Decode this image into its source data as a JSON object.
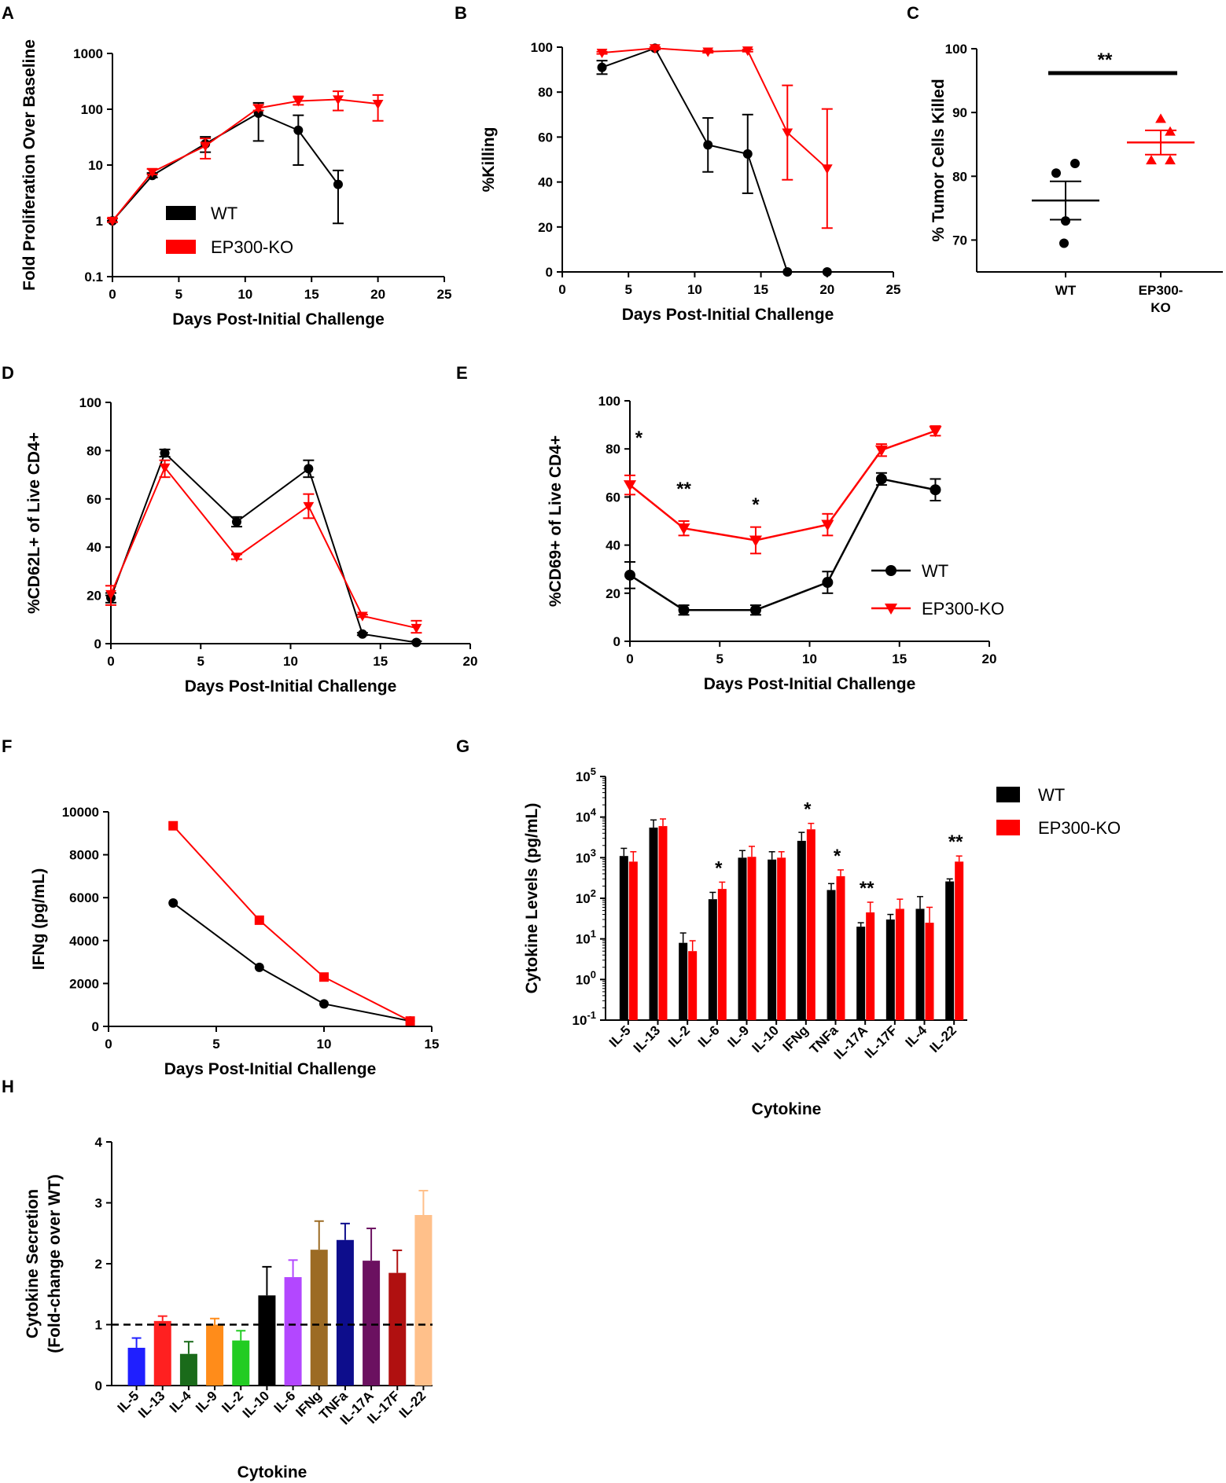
{
  "colors": {
    "wt": "#000000",
    "ko": "#ff0000"
  },
  "panel_letters": [
    "A",
    "B",
    "C",
    "D",
    "E",
    "F",
    "G",
    "H"
  ],
  "chart_data": [
    {
      "id": "A",
      "type": "line",
      "xscale": "linear",
      "yscale": "log",
      "title": "",
      "xlabel": "Days Post-Initial Challenge",
      "ylabel": "Fold Proliferation Over Baseline",
      "xlim": [
        0,
        25
      ],
      "ylim": [
        0.1,
        1000
      ],
      "xticks": [
        0,
        5,
        10,
        15,
        20,
        25
      ],
      "xtick_labels": [
        "0",
        "5",
        "10",
        "15",
        "20",
        "25"
      ],
      "yticks": [
        0.1,
        1,
        10,
        100,
        1000
      ],
      "ytick_labels": [
        "0.1",
        "1",
        "10",
        "100",
        "1000"
      ],
      "legend": {
        "position": "bottom-center",
        "style": "box",
        "entries": [
          "WT",
          "EP300-KO"
        ]
      },
      "series": [
        {
          "name": "WT",
          "color_key": "wt",
          "marker": "circle",
          "x": [
            0,
            3,
            7,
            11,
            14,
            17
          ],
          "y": [
            1,
            6.5,
            24,
            85,
            42,
            4.5
          ],
          "err_hi": [
            1.1,
            7.2,
            32,
            130,
            78,
            8
          ],
          "err_lo": [
            0.95,
            6,
            17,
            27,
            10,
            0.9
          ]
        },
        {
          "name": "EP300-KO",
          "color_key": "ko",
          "marker": "triangle-down",
          "x": [
            0,
            3,
            7,
            11,
            14,
            17,
            20
          ],
          "y": [
            1,
            7.5,
            22,
            105,
            140,
            150,
            125
          ],
          "err_hi": [
            1.1,
            8.5,
            30,
            120,
            170,
            210,
            180
          ],
          "err_lo": [
            0.95,
            6.8,
            13,
            95,
            120,
            95,
            62
          ]
        }
      ]
    },
    {
      "id": "B",
      "type": "line",
      "xscale": "linear",
      "yscale": "linear",
      "title": "",
      "xlabel": "Days Post-Initial Challenge",
      "ylabel": "%Killing",
      "xlim": [
        0,
        25
      ],
      "ylim": [
        0,
        100
      ],
      "xticks": [
        0,
        5,
        10,
        15,
        20,
        25
      ],
      "xtick_labels": [
        "0",
        "5",
        "10",
        "15",
        "20",
        "25"
      ],
      "yticks": [
        0,
        20,
        40,
        60,
        80,
        100
      ],
      "ytick_labels": [
        "0",
        "20",
        "40",
        "60",
        "80",
        "100"
      ],
      "legend": null,
      "series": [
        {
          "name": "WT",
          "color_key": "wt",
          "marker": "circle",
          "x": [
            3,
            7,
            11,
            14,
            17,
            20
          ],
          "y": [
            91,
            99.5,
            56.5,
            52.5,
            0,
            0
          ],
          "err_hi": [
            94,
            100,
            68.5,
            70,
            0,
            0
          ],
          "err_lo": [
            88,
            99,
            44.5,
            35,
            0,
            0
          ]
        },
        {
          "name": "EP300-KO",
          "color_key": "ko",
          "marker": "triangle-down",
          "x": [
            3,
            7,
            11,
            14,
            17,
            20
          ],
          "y": [
            97.5,
            99.5,
            98,
            98.5,
            62,
            46
          ],
          "err_hi": [
            98,
            100,
            98.5,
            99,
            83,
            72.5
          ],
          "err_lo": [
            97,
            99,
            97.5,
            98,
            41,
            19.5
          ]
        }
      ]
    },
    {
      "id": "C",
      "type": "scatter",
      "title": "",
      "xlabel": "",
      "ylabel": "% Tumor Cells Killed",
      "ylim": [
        65,
        100
      ],
      "yticks": [
        70,
        80,
        90,
        100
      ],
      "ytick_labels": [
        "70",
        "80",
        "90",
        "100"
      ],
      "categories": [
        "WT",
        "EP300-KO"
      ],
      "category_lines": [
        [
          "WT"
        ],
        [
          "EP300-",
          "KO"
        ]
      ],
      "groups": [
        {
          "name": "WT",
          "color_key": "wt",
          "marker": "circle",
          "points": [
            80.5,
            82,
            73,
            69.5
          ],
          "mean": 76.2,
          "sem_hi": 79.2,
          "sem_lo": 73.2
        },
        {
          "name": "EP300-KO",
          "color_key": "ko",
          "marker": "triangle-up",
          "points": [
            89,
            87,
            82.5,
            82.5
          ],
          "mean": 85.3,
          "sem_hi": 87.2,
          "sem_lo": 83.4
        }
      ],
      "significance": "**"
    },
    {
      "id": "D",
      "type": "line",
      "xscale": "linear",
      "yscale": "linear",
      "title": "",
      "xlabel": "Days Post-Initial Challenge",
      "ylabel": "%CD62L+ of Live CD4+",
      "xlim": [
        0,
        20
      ],
      "ylim": [
        0,
        100
      ],
      "xticks": [
        0,
        5,
        10,
        15,
        20
      ],
      "xtick_labels": [
        "0",
        "5",
        "10",
        "15",
        "20"
      ],
      "yticks": [
        0,
        20,
        40,
        60,
        80,
        100
      ],
      "ytick_labels": [
        "0",
        "20",
        "40",
        "60",
        "80",
        "100"
      ],
      "legend": null,
      "series": [
        {
          "name": "WT",
          "color_key": "wt",
          "marker": "circle",
          "x": [
            0,
            3,
            7,
            11,
            14,
            17
          ],
          "y": [
            19,
            79,
            50.5,
            72.5,
            4,
            0.5
          ],
          "err_hi": [
            21,
            80.5,
            52.5,
            76,
            4.5,
            1
          ],
          "err_lo": [
            17,
            77.5,
            48.5,
            69,
            3.5,
            0
          ]
        },
        {
          "name": "EP300-KO",
          "color_key": "ko",
          "marker": "triangle-down",
          "x": [
            0,
            3,
            7,
            11,
            14,
            17
          ],
          "y": [
            20.5,
            73,
            36,
            57,
            11.5,
            6.5
          ],
          "err_hi": [
            24,
            76,
            37,
            62,
            12,
            9.5
          ],
          "err_lo": [
            16,
            69,
            35,
            52,
            11,
            4.5
          ]
        }
      ]
    },
    {
      "id": "E",
      "type": "line",
      "xscale": "linear",
      "yscale": "linear",
      "title": "",
      "xlabel": "Days Post-Initial Challenge",
      "ylabel": "%CD69+ of Live CD4+",
      "xlim": [
        0,
        20
      ],
      "ylim": [
        0,
        100
      ],
      "xticks": [
        0,
        5,
        10,
        15,
        20
      ],
      "xtick_labels": [
        "0",
        "5",
        "10",
        "15",
        "20"
      ],
      "yticks": [
        0,
        20,
        40,
        60,
        80,
        100
      ],
      "ytick_labels": [
        "0",
        "20",
        "40",
        "60",
        "80",
        "100"
      ],
      "legend": {
        "position": "right-center",
        "style": "line-marker",
        "entries": [
          "WT",
          "EP300-KO"
        ]
      },
      "annotations": [
        {
          "x": 0.5,
          "text": "*"
        },
        {
          "x": 3,
          "text": "**"
        },
        {
          "x": 7,
          "text": "*"
        }
      ],
      "series": [
        {
          "name": "WT",
          "color_key": "wt",
          "marker": "circle",
          "x": [
            0,
            3,
            7,
            11,
            14,
            17
          ],
          "y": [
            27.5,
            13,
            13,
            24.5,
            67.5,
            63
          ],
          "err_hi": [
            33,
            15,
            15,
            29,
            70,
            67.5
          ],
          "err_lo": [
            22,
            11,
            11,
            20,
            65,
            58.5
          ]
        },
        {
          "name": "EP300-KO",
          "color_key": "ko",
          "marker": "triangle-down",
          "x": [
            0,
            3,
            7,
            11,
            14,
            17
          ],
          "y": [
            65,
            47,
            42,
            48.5,
            79.5,
            87.5
          ],
          "err_hi": [
            69,
            50,
            47.5,
            53,
            82,
            89.5
          ],
          "err_lo": [
            61,
            44,
            36.5,
            44,
            77,
            85.5
          ]
        }
      ]
    },
    {
      "id": "F",
      "type": "line",
      "xscale": "linear",
      "yscale": "linear",
      "title": "",
      "xlabel": "Days Post-Initial Challenge",
      "ylabel": "IFNg (pg/mL)",
      "xlim": [
        0,
        15
      ],
      "ylim": [
        0,
        10000
      ],
      "xticks": [
        0,
        5,
        10,
        15
      ],
      "xtick_labels": [
        "0",
        "5",
        "10",
        "15"
      ],
      "yticks": [
        0,
        2000,
        4000,
        6000,
        8000,
        10000
      ],
      "ytick_labels": [
        "0",
        "2000",
        "4000",
        "6000",
        "8000",
        "10000"
      ],
      "legend": null,
      "series": [
        {
          "name": "WT",
          "color_key": "wt",
          "marker": "circle",
          "x": [
            3,
            7,
            10,
            14
          ],
          "y": [
            5750,
            2750,
            1050,
            250
          ]
        },
        {
          "name": "EP300-KO",
          "color_key": "ko",
          "marker": "square",
          "x": [
            3,
            7,
            10,
            14
          ],
          "y": [
            9350,
            4950,
            2300,
            250
          ]
        }
      ]
    },
    {
      "id": "G",
      "type": "bar",
      "yscale": "log",
      "title": "",
      "xlabel": "Cytokine",
      "ylabel": "Cytokine Levels (pg/mL)",
      "ylim": [
        0.1,
        100000
      ],
      "ytick_exponents": [
        -1,
        0,
        1,
        2,
        3,
        4,
        5
      ],
      "ytick_base": "10",
      "categories": [
        "IL-5",
        "IL-13",
        "IL-2",
        "IL-6",
        "IL-9",
        "IL-10",
        "IFNg",
        "TNFa",
        "IL-17A",
        "IL-17F",
        "IL-4",
        "IL-22"
      ],
      "legend": {
        "position": "top-right",
        "style": "box",
        "entries": [
          "WT",
          "EP300-KO"
        ]
      },
      "series": [
        {
          "name": "WT",
          "color_key": "wt",
          "values": [
            1100,
            5500,
            8,
            95,
            1000,
            900,
            2600,
            160,
            20,
            30,
            55,
            260
          ],
          "err": [
            1700,
            8500,
            14,
            140,
            1500,
            1400,
            4200,
            230,
            25,
            40,
            110,
            300
          ]
        },
        {
          "name": "EP300-KO",
          "color_key": "ko",
          "values": [
            800,
            6000,
            5,
            170,
            1050,
            1000,
            5000,
            350,
            45,
            55,
            25,
            800
          ],
          "err": [
            1400,
            9000,
            9,
            250,
            1900,
            1400,
            7000,
            500,
            80,
            95,
            60,
            1100
          ]
        }
      ],
      "annotations": [
        {
          "category": "IL-6",
          "text": "*"
        },
        {
          "category": "IFNg",
          "text": "*"
        },
        {
          "category": "TNFa",
          "text": "*"
        },
        {
          "category": "IL-17A",
          "text": "**"
        },
        {
          "category": "IL-22",
          "text": "**"
        }
      ]
    },
    {
      "id": "H",
      "type": "bar",
      "yscale": "linear",
      "title": "",
      "xlabel": "Cytokine",
      "ylabel_lines": [
        "Cytokine Secretion",
        "(Fold-change over WT)"
      ],
      "ylim": [
        0,
        4
      ],
      "yticks": [
        0,
        1,
        2,
        3,
        4
      ],
      "ytick_labels": [
        "0",
        "1",
        "2",
        "3",
        "4"
      ],
      "reference_line": 1,
      "categories": [
        "IL-5",
        "IL-13",
        "IL-4",
        "IL-9",
        "IL-2",
        "IL-10",
        "IL-6",
        "IFNg",
        "TNFa",
        "IL-17A",
        "IL-17F",
        "IL-22"
      ],
      "values": [
        0.62,
        1.06,
        0.52,
        1.0,
        0.74,
        1.48,
        1.78,
        2.23,
        2.39,
        2.05,
        1.85,
        2.8
      ],
      "err": [
        0.78,
        1.14,
        0.72,
        1.1,
        0.9,
        1.95,
        2.06,
        2.7,
        2.66,
        2.58,
        2.22,
        3.2
      ],
      "bar_colors": [
        "#1f1fff",
        "#ff2020",
        "#1a6b1a",
        "#ff8c1a",
        "#22cc22",
        "#000000",
        "#b347ff",
        "#9c6b24",
        "#0d0d8c",
        "#6b1160",
        "#b01010",
        "#ffc08a"
      ]
    }
  ]
}
